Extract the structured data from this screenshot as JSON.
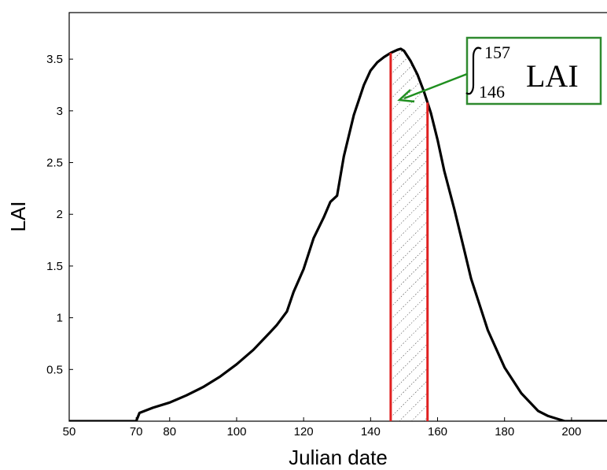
{
  "chart_data": {
    "type": "line",
    "title": "",
    "xlabel": "Julian date",
    "ylabel": "LAI",
    "xlim": [
      50,
      212
    ],
    "ylim": [
      0,
      3.95
    ],
    "xticks": [
      50,
      70,
      80,
      100,
      120,
      140,
      160,
      180,
      200
    ],
    "xtick_labels": [
      "50",
      "70",
      "80",
      "100",
      "120",
      "140",
      "160",
      "180",
      "200"
    ],
    "yticks": [
      0.5,
      1,
      1.5,
      2,
      2.5,
      3,
      3.5
    ],
    "ytick_labels": [
      "0.5",
      "1",
      "1.5",
      "2",
      "2.5",
      "3",
      "3.5"
    ],
    "grid": false,
    "series": [
      {
        "color": "#000000",
        "x": [
          50,
          70,
          71,
          75,
          80,
          85,
          90,
          95,
          100,
          105,
          110,
          112,
          115,
          117,
          120,
          123,
          126,
          128,
          130,
          132,
          135,
          138,
          140,
          142,
          144,
          146,
          148,
          149,
          150,
          152,
          154,
          156,
          158,
          160,
          162,
          165,
          168,
          170,
          175,
          180,
          185,
          190,
          193,
          196,
          197,
          198,
          212
        ],
        "y": [
          0,
          0,
          0.08,
          0.13,
          0.18,
          0.25,
          0.33,
          0.43,
          0.55,
          0.69,
          0.86,
          0.93,
          1.06,
          1.25,
          1.47,
          1.77,
          1.97,
          2.12,
          2.18,
          2.56,
          2.96,
          3.25,
          3.39,
          3.47,
          3.52,
          3.56,
          3.59,
          3.6,
          3.58,
          3.48,
          3.35,
          3.18,
          2.98,
          2.72,
          2.42,
          2.05,
          1.65,
          1.38,
          0.88,
          0.52,
          0.27,
          0.1,
          0.05,
          0.02,
          0.01,
          0,
          0
        ]
      }
    ],
    "highlight_region": {
      "x_start": 146,
      "x_end": 157,
      "boundary_color": "#e02020",
      "fill": "hatched"
    },
    "annotation": {
      "lower_limit": "146",
      "upper_limit": "157",
      "text": "LAI",
      "box_color": "#2f8a2f",
      "arrow_color": "#1f8f1f",
      "points_to": [
        150,
        3.15
      ]
    }
  }
}
